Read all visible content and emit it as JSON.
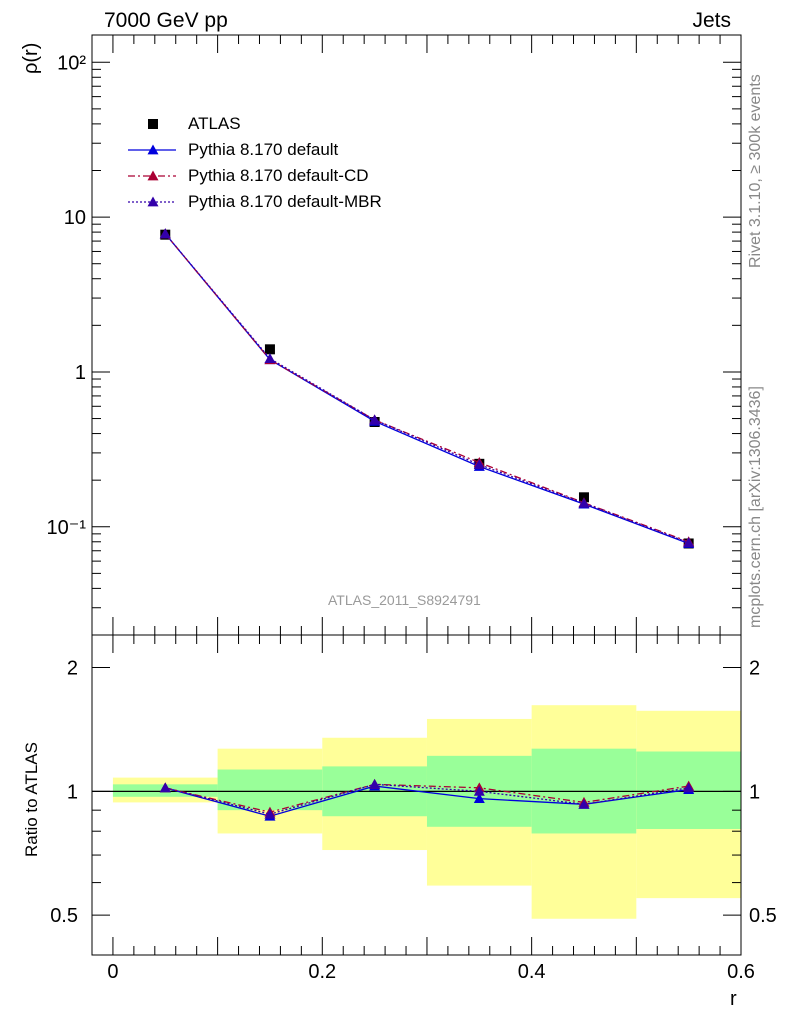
{
  "header": {
    "left": "7000 GeV pp",
    "right": "Jets"
  },
  "side_labels": {
    "rivet": "Rivet 3.1.10, ≥ 300k events",
    "mcplots": "mcplots.cern.ch [arXiv:1306.3436]"
  },
  "watermark": "ATLAS_2011_S8924791",
  "legend": [
    {
      "label": "ATLAS",
      "marker": "square",
      "color": "#000000",
      "line": "none"
    },
    {
      "label": "Pythia 8.170 default",
      "marker": "triangle",
      "color": "#0000dd",
      "line": "solid"
    },
    {
      "label": "Pythia 8.170 default-CD",
      "marker": "triangle",
      "color": "#aa0033",
      "line": "dashdot"
    },
    {
      "label": "Pythia 8.170 default-MBR",
      "marker": "triangle",
      "color": "#3300aa",
      "line": "dotted"
    }
  ],
  "chart_data": [
    {
      "type": "line",
      "ylabel": "ρ(r)",
      "xlabel": "",
      "yscale": "log",
      "ylim": [
        0.02,
        150
      ],
      "xlim": [
        -0.02,
        0.6
      ],
      "y_ticks": [
        {
          "label": "10²"
        },
        {
          "label": "10"
        },
        {
          "label": "1"
        },
        {
          "label": "10⁻¹"
        }
      ],
      "x": [
        0.05,
        0.15,
        0.25,
        0.35,
        0.45,
        0.55
      ],
      "series": [
        {
          "name": "ATLAS",
          "values": [
            7.7,
            1.4,
            0.475,
            0.255,
            0.155,
            0.078
          ]
        },
        {
          "name": "Pythia 8.170 default",
          "values": [
            7.8,
            1.2,
            0.48,
            0.245,
            0.14,
            0.078
          ]
        },
        {
          "name": "Pythia 8.170 default-CD",
          "values": [
            7.8,
            1.2,
            0.49,
            0.26,
            0.143,
            0.08
          ]
        },
        {
          "name": "Pythia 8.170 default-MBR",
          "values": [
            7.8,
            1.22,
            0.49,
            0.252,
            0.142,
            0.079
          ]
        }
      ]
    },
    {
      "type": "line",
      "ylabel": "Ratio to ATLAS",
      "xlabel": "r",
      "yscale": "log",
      "ylim": [
        0.4,
        2.4
      ],
      "xlim": [
        -0.02,
        0.6
      ],
      "x_ticks": [
        {
          "value": 0,
          "label": "0"
        },
        {
          "value": 0.2,
          "label": "0.2"
        },
        {
          "value": 0.4,
          "label": "0.4"
        },
        {
          "value": 0.6,
          "label": "0.6"
        }
      ],
      "y_ticks": [
        {
          "value": 0.5,
          "label": "0.5"
        },
        {
          "value": 1,
          "label": "1"
        },
        {
          "value": 2,
          "label": "2"
        }
      ],
      "x": [
        0.05,
        0.15,
        0.25,
        0.35,
        0.45,
        0.55
      ],
      "bands": [
        {
          "x_low": 0.0,
          "x_high": 0.1,
          "green": [
            0.97,
            1.04
          ],
          "yellow": [
            0.94,
            1.08
          ]
        },
        {
          "x_low": 0.1,
          "x_high": 0.2,
          "green": [
            0.9,
            1.13
          ],
          "yellow": [
            0.79,
            1.27
          ]
        },
        {
          "x_low": 0.2,
          "x_high": 0.3,
          "green": [
            0.87,
            1.15
          ],
          "yellow": [
            0.72,
            1.35
          ]
        },
        {
          "x_low": 0.3,
          "x_high": 0.4,
          "green": [
            0.82,
            1.22
          ],
          "yellow": [
            0.59,
            1.5
          ]
        },
        {
          "x_low": 0.4,
          "x_high": 0.5,
          "green": [
            0.79,
            1.27
          ],
          "yellow": [
            0.49,
            1.62
          ]
        },
        {
          "x_low": 0.5,
          "x_high": 0.6,
          "green": [
            0.81,
            1.25
          ],
          "yellow": [
            0.55,
            1.57
          ]
        }
      ],
      "series": [
        {
          "name": "Pythia 8.170 default",
          "values": [
            1.02,
            0.87,
            1.03,
            0.96,
            0.93,
            1.01
          ]
        },
        {
          "name": "Pythia 8.170 default-CD",
          "values": [
            1.02,
            0.89,
            1.04,
            1.02,
            0.94,
            1.03
          ]
        },
        {
          "name": "Pythia 8.170 default-MBR",
          "values": [
            1.02,
            0.88,
            1.04,
            1.0,
            0.93,
            1.02
          ]
        }
      ]
    }
  ]
}
